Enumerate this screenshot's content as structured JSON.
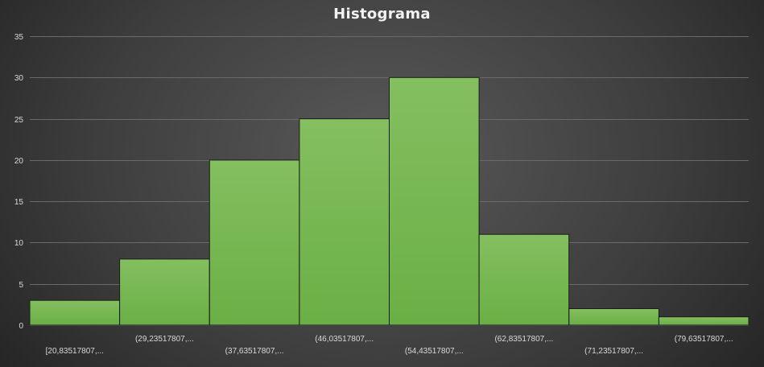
{
  "chart_data": {
    "type": "bar",
    "title": "Histograma",
    "categories": [
      "[20,83517807,...",
      "(29,23517807,...",
      "(37,63517807,...",
      "(46,03517807,...",
      "(54,43517807,...",
      "(62,83517807,...",
      "(71,23517807,...",
      "(79,63517807,..."
    ],
    "values": [
      3,
      8,
      20,
      25,
      30,
      11,
      2,
      1
    ],
    "ylim": [
      0,
      35
    ],
    "yticks": [
      0,
      5,
      10,
      15,
      20,
      25,
      30,
      35
    ],
    "grid": true,
    "bar_color": "#6aaf45",
    "bar_color_light": "#84bf60",
    "background": "#3f3f3f"
  }
}
